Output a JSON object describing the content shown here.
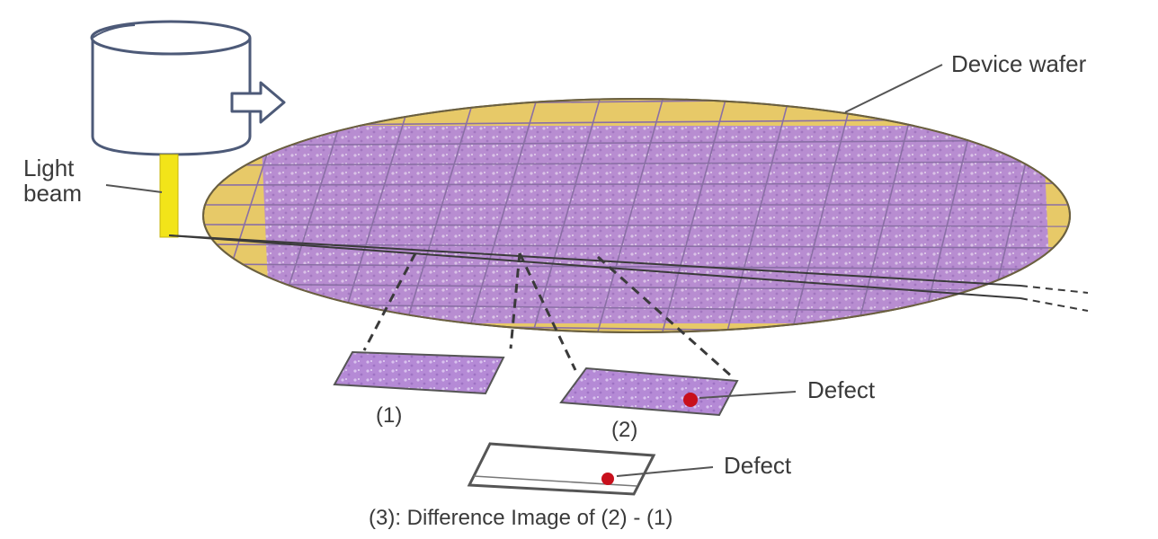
{
  "labels": {
    "device_wafer": "Device wafer",
    "light": "Light",
    "beam": "beam",
    "defect_2": "Defect",
    "defect_3": "Defect",
    "img1": "(1)",
    "img2": "(2)",
    "caption": "(3): Difference Image of (2) - (1)"
  },
  "colors": {
    "wafer_die": "#b58ad6",
    "wafer_edge": "#e7c968",
    "grid_line": "#8a6fa5",
    "light_beam": "#f2e419",
    "defect": "#c8101c",
    "outline": "#555555",
    "lamp_stroke": "#4d5a78"
  },
  "icons": {
    "lamp": "light-source-cylinder-icon",
    "arrow": "hollow-right-arrow-icon"
  }
}
